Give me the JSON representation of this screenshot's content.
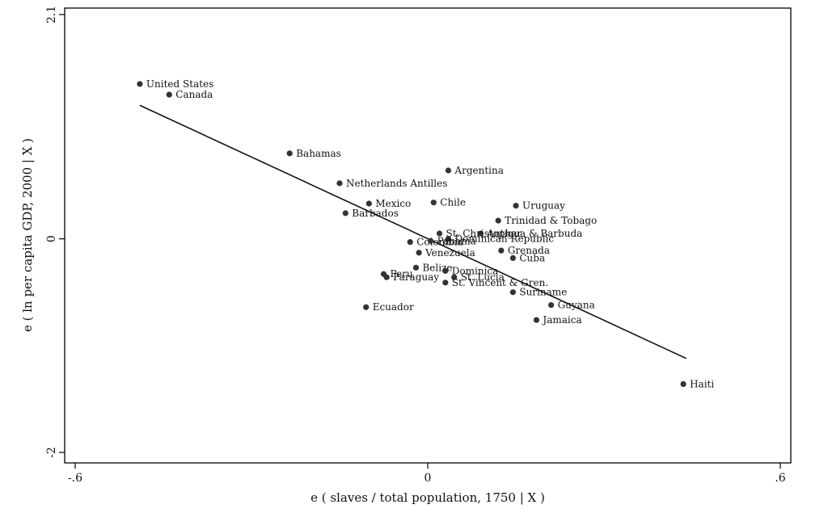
{
  "chart_data": {
    "type": "scatter",
    "xlabel": "e ( slaves / total population, 1750 | X )",
    "ylabel": "e ( ln per capita GDP, 2000 | X )",
    "xlim": [
      -0.6,
      0.6
    ],
    "ylim": [
      -2,
      2.1
    ],
    "x_ticks": [
      {
        "value": -0.6,
        "label": "-.6"
      },
      {
        "value": 0,
        "label": "0"
      },
      {
        "value": 0.6,
        "label": ".6"
      }
    ],
    "y_ticks": [
      {
        "value": -2,
        "label": "-2"
      },
      {
        "value": 0,
        "label": "0"
      },
      {
        "value": 2.1,
        "label": "2.1"
      }
    ],
    "points": [
      {
        "label": "United States",
        "x": -0.49,
        "y": 1.45
      },
      {
        "label": "Canada",
        "x": -0.44,
        "y": 1.35
      },
      {
        "label": "Bahamas",
        "x": -0.235,
        "y": 0.8
      },
      {
        "label": "Netherlands Antilles",
        "x": -0.15,
        "y": 0.52
      },
      {
        "label": "Argentina",
        "x": 0.035,
        "y": 0.64
      },
      {
        "label": "Mexico",
        "x": -0.1,
        "y": 0.33
      },
      {
        "label": "Chile",
        "x": 0.01,
        "y": 0.34
      },
      {
        "label": "Uruguay",
        "x": 0.15,
        "y": 0.31
      },
      {
        "label": "Barbados",
        "x": -0.14,
        "y": 0.24
      },
      {
        "label": "Trinidad & Tobago",
        "x": 0.12,
        "y": 0.17
      },
      {
        "label": "Antigua & Barbuda",
        "x": 0.09,
        "y": 0.05
      },
      {
        "label": "St. Christopher",
        "x": 0.02,
        "y": 0.05
      },
      {
        "label": "Dominican Republic",
        "x": 0.035,
        "y": 0.0
      },
      {
        "label": "Colombia",
        "x": -0.03,
        "y": -0.03
      },
      {
        "label": "Panama",
        "x": 0.005,
        "y": -0.02
      },
      {
        "label": "Venezuela",
        "x": -0.015,
        "y": -0.13
      },
      {
        "label": "Grenada",
        "x": 0.125,
        "y": -0.11
      },
      {
        "label": "Cuba",
        "x": 0.145,
        "y": -0.18
      },
      {
        "label": "Belize",
        "x": -0.02,
        "y": -0.27
      },
      {
        "label": "Dominica",
        "x": 0.03,
        "y": -0.3
      },
      {
        "label": "Peru",
        "x": -0.075,
        "y": -0.33
      },
      {
        "label": "Paraguay",
        "x": -0.07,
        "y": -0.36
      },
      {
        "label": "St. Lucia",
        "x": 0.045,
        "y": -0.36
      },
      {
        "label": "St. Vincent & Gren.",
        "x": 0.03,
        "y": -0.41
      },
      {
        "label": "Suriname",
        "x": 0.145,
        "y": -0.5
      },
      {
        "label": "Guyana",
        "x": 0.21,
        "y": -0.62
      },
      {
        "label": "Ecuador",
        "x": -0.105,
        "y": -0.64
      },
      {
        "label": "Jamaica",
        "x": 0.185,
        "y": -0.76
      },
      {
        "label": "Haiti",
        "x": 0.435,
        "y": -1.36
      }
    ],
    "fit_line": {
      "x": [
        -0.49,
        0.44
      ],
      "y": [
        1.25,
        -1.12
      ]
    },
    "grid": false,
    "legend": "none"
  }
}
